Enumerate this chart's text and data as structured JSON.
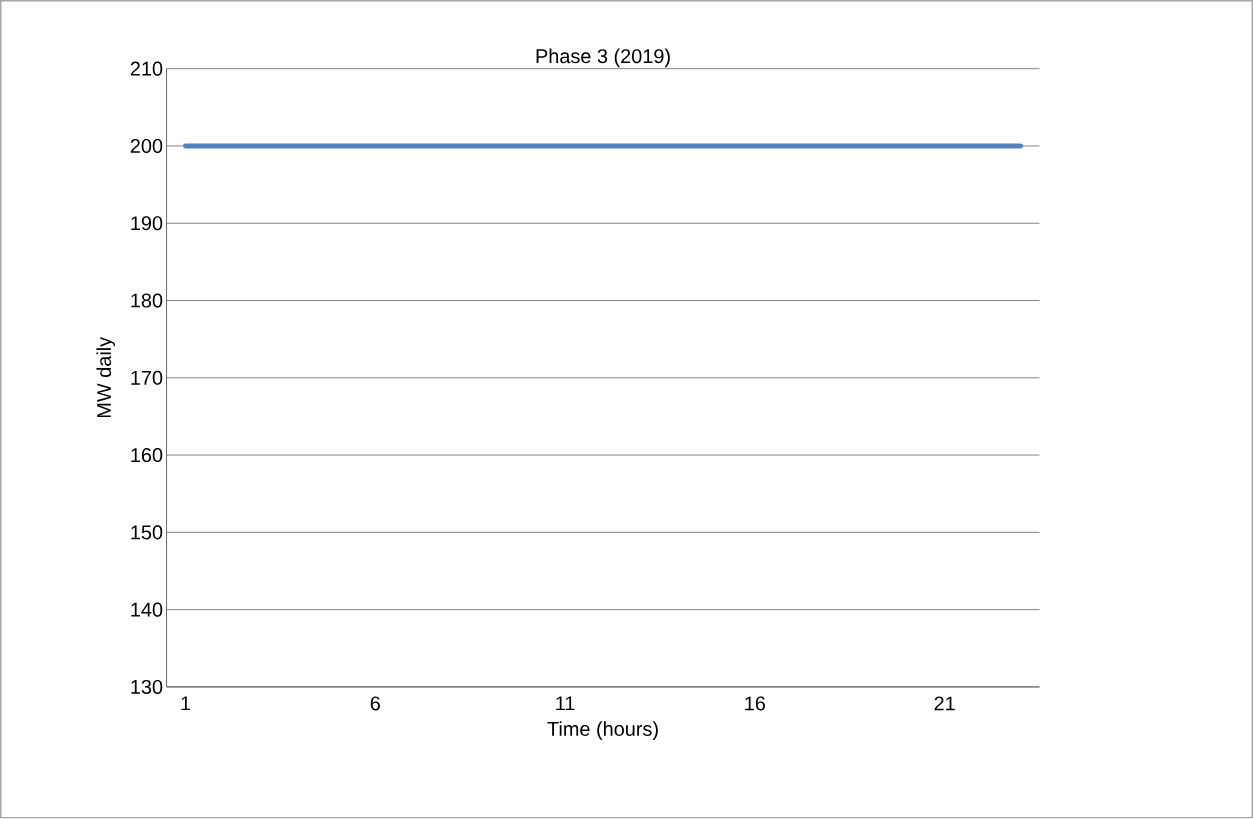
{
  "chart_data": {
    "type": "line",
    "title": "Phase 3 (2019)",
    "xlabel": "Time (hours)",
    "ylabel": "MW daily",
    "categories": [
      "1",
      null,
      null,
      null,
      null,
      "6",
      null,
      null,
      null,
      null,
      "11",
      null,
      null,
      null,
      null,
      "16",
      null,
      null,
      null,
      null,
      "21",
      null,
      null
    ],
    "series": [
      {
        "color": "#4f81bd",
        "values": [
          200,
          200,
          200,
          200,
          200,
          200,
          200,
          200,
          200,
          200,
          200,
          200,
          200,
          200,
          200,
          200,
          200,
          200,
          200,
          200,
          200,
          200,
          200
        ]
      }
    ],
    "ylim": [
      130,
      210
    ],
    "yticks": [
      130,
      140,
      150,
      160,
      170,
      180,
      190,
      200,
      210
    ],
    "grid": "y",
    "marker": "none",
    "line_style": "solid"
  }
}
